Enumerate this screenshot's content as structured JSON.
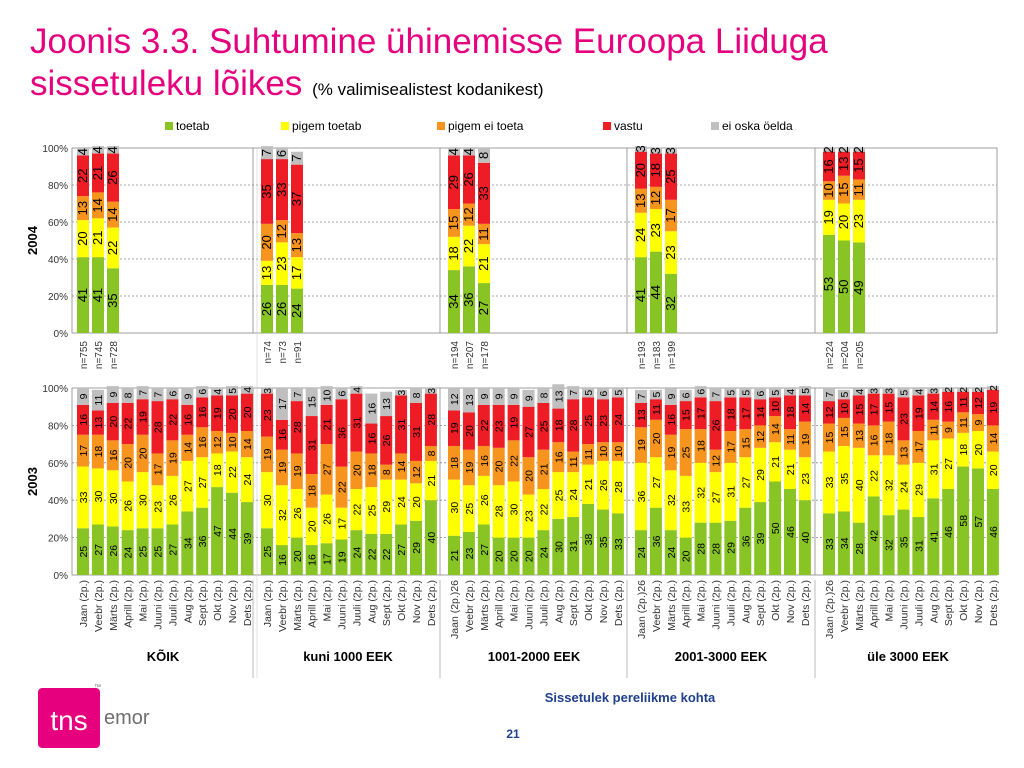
{
  "title": {
    "line1": "Joonis 3.3. Suhtumine ühinemisse Euroopa Liiduga",
    "line2": "sissetuleku lõikes",
    "subtitle": "(% valimisealistest kodanikest)"
  },
  "footer": {
    "page_number": "21",
    "logo_tns": "tns",
    "logo_emor": "emor",
    "logo_tm": "™"
  },
  "colors": {
    "toetab": "#88c424",
    "pigem toetab": "#ffff00",
    "pigem ei toeta": "#f7941d",
    "vastu": "#ee1c24",
    "ei oska öelda": "#bfbfbf",
    "title": "#e6007e"
  },
  "chart_data": {
    "type": "bar",
    "stacked": true,
    "legend": [
      "toetab",
      "pigem toetab",
      "pigem ei toeta",
      "vastu",
      "ei oska öelda"
    ],
    "legend_position": "top",
    "x_title": "Sissetulek pereliikme kohta",
    "yticks": [
      "0%",
      "20%",
      "40%",
      "60%",
      "80%",
      "100%"
    ],
    "ylim": [
      0,
      100
    ],
    "grid": true,
    "groups": [
      "KÕIK",
      "kuni 1000 EEK",
      "1001-2000 EEK",
      "2001-3000 EEK",
      "üle 3000 EEK"
    ],
    "panels": [
      {
        "ylabel": "2004",
        "groups": [
          {
            "bars": [
              {
                "label": "n=755",
                "values": [
                  41,
                  20,
                  13,
                  22,
                  4
                ]
              },
              {
                "label": "n=745",
                "values": [
                  41,
                  21,
                  14,
                  21,
                  4
                ]
              },
              {
                "label": "n=728",
                "values": [
                  35,
                  22,
                  14,
                  26,
                  4
                ]
              }
            ]
          },
          {
            "bars": [
              {
                "label": "n=74",
                "values": [
                  26,
                  13,
                  20,
                  35,
                  7
                ]
              },
              {
                "label": "n=73",
                "values": [
                  26,
                  23,
                  12,
                  33,
                  6
                ]
              },
              {
                "label": "n=91",
                "values": [
                  24,
                  17,
                  13,
                  37,
                  7
                ]
              }
            ]
          },
          {
            "bars": [
              {
                "label": "n=194",
                "values": [
                  34,
                  18,
                  15,
                  29,
                  4
                ]
              },
              {
                "label": "n=207",
                "values": [
                  36,
                  22,
                  12,
                  26,
                  4
                ]
              },
              {
                "label": "n=178",
                "values": [
                  27,
                  21,
                  11,
                  33,
                  8
                ]
              }
            ]
          },
          {
            "bars": [
              {
                "label": "n=193",
                "values": [
                  41,
                  24,
                  13,
                  20,
                  3
                ]
              },
              {
                "label": "n=183",
                "values": [
                  44,
                  23,
                  12,
                  18,
                  3
                ]
              },
              {
                "label": "n=199",
                "values": [
                  32,
                  23,
                  17,
                  25,
                  3
                ]
              }
            ]
          },
          {
            "bars": [
              {
                "label": "n=224",
                "values": [
                  53,
                  19,
                  10,
                  16,
                  2
                ]
              },
              {
                "label": "n=204",
                "values": [
                  50,
                  20,
                  15,
                  13,
                  2
                ]
              },
              {
                "label": "n=205",
                "values": [
                  49,
                  23,
                  11,
                  15,
                  2
                ]
              }
            ]
          }
        ]
      },
      {
        "ylabel": "2003",
        "groups": [
          {
            "bars": [
              {
                "label": "Jaan (2p.)",
                "values": [
                  25,
                  33,
                  17,
                  16,
                  9
                ]
              },
              {
                "label": "Veebr (2p.)",
                "values": [
                  27,
                  30,
                  18,
                  13,
                  11
                ]
              },
              {
                "label": "Märts (2p.)",
                "values": [
                  26,
                  30,
                  16,
                  20,
                  9
                ]
              },
              {
                "label": "Aprill (2p.)",
                "values": [
                  24,
                  26,
                  20,
                  22,
                  8
                ]
              },
              {
                "label": "Mai (2p.)",
                "values": [
                  25,
                  30,
                  20,
                  19,
                  7
                ]
              },
              {
                "label": "Juuni (2p.)",
                "values": [
                  25,
                  23,
                  17,
                  28,
                  7
                ]
              },
              {
                "label": "Juuli (2p.)",
                "values": [
                  27,
                  26,
                  19,
                  22,
                  6
                ]
              },
              {
                "label": "Aug (2p.)",
                "values": [
                  34,
                  27,
                  14,
                  16,
                  9
                ]
              },
              {
                "label": "Sept (2p.)",
                "values": [
                  36,
                  27,
                  16,
                  16,
                  6
                ]
              },
              {
                "label": "Okt (2p.)",
                "values": [
                  47,
                  18,
                  12,
                  19,
                  4
                ]
              },
              {
                "label": "Nov (2p.)",
                "values": [
                  44,
                  22,
                  10,
                  20,
                  5
                ]
              },
              {
                "label": "Dets (2p.)",
                "values": [
                  39,
                  24,
                  14,
                  20,
                  4
                ]
              }
            ]
          },
          {
            "bars": [
              {
                "label": "Jaan (2p.)",
                "values": [
                  25,
                  30,
                  19,
                  23,
                  3
                ]
              },
              {
                "label": "Veebr (2p.)",
                "values": [
                  16,
                  32,
                  19,
                  16,
                  17
                ]
              },
              {
                "label": "Märts (2p.)",
                "values": [
                  20,
                  26,
                  19,
                  28,
                  7
                ]
              },
              {
                "label": "Aprill (2p.)",
                "values": [
                  16,
                  20,
                  18,
                  31,
                  15
                ]
              },
              {
                "label": "Mai (2p.)",
                "values": [
                  17,
                  26,
                  27,
                  21,
                  10
                ]
              },
              {
                "label": "Juuni (2p.)",
                "values": [
                  19,
                  17,
                  22,
                  36,
                  6
                ]
              },
              {
                "label": "Juuli (2p.)",
                "values": [
                  24,
                  22,
                  20,
                  31,
                  4
                ]
              },
              {
                "label": "Aug (2p.)",
                "values": [
                  22,
                  25,
                  18,
                  16,
                  16
                ]
              },
              {
                "label": "Sept (2p.)",
                "values": [
                  22,
                  29,
                  8,
                  26,
                  13
                ]
              },
              {
                "label": "Okt (2p.)",
                "values": [
                  27,
                  24,
                  14,
                  31,
                  3
                ]
              },
              {
                "label": "Nov (2p.)",
                "values": [
                  29,
                  20,
                  12,
                  31,
                  8
                ]
              },
              {
                "label": "Dets (2p.)",
                "values": [
                  40,
                  21,
                  8,
                  28,
                  3
                ]
              }
            ]
          },
          {
            "bars": [
              {
                "label": "Jaan (2p.)26",
                "values": [
                  21,
                  30,
                  18,
                  19,
                  12
                ]
              },
              {
                "label": "Veebr (2p.)",
                "values": [
                  23,
                  25,
                  19,
                  20,
                  13
                ]
              },
              {
                "label": "Märts (2p.)",
                "values": [
                  27,
                  26,
                  16,
                  22,
                  9
                ]
              },
              {
                "label": "Aprill (2p.)",
                "values": [
                  20,
                  28,
                  20,
                  23,
                  9
                ]
              },
              {
                "label": "Mai (2p.)",
                "values": [
                  20,
                  30,
                  22,
                  19,
                  9
                ]
              },
              {
                "label": "Juuni (2p.)",
                "values": [
                  20,
                  23,
                  20,
                  27,
                  9
                ]
              },
              {
                "label": "Juuli (2p.)",
                "values": [
                  24,
                  22,
                  21,
                  25,
                  8
                ]
              },
              {
                "label": "Aug (2p.)",
                "values": [
                  30,
                  25,
                  16,
                  18,
                  13
                ]
              },
              {
                "label": "Sept (2p.)",
                "values": [
                  31,
                  24,
                  11,
                  28,
                  7
                ]
              },
              {
                "label": "Okt (2p.)",
                "values": [
                  38,
                  21,
                  11,
                  25,
                  5
                ]
              },
              {
                "label": "Nov (2p.)",
                "values": [
                  35,
                  26,
                  10,
                  23,
                  6
                ]
              },
              {
                "label": "Dets (2p.)",
                "values": [
                  33,
                  28,
                  10,
                  24,
                  5
                ]
              }
            ]
          },
          {
            "bars": [
              {
                "label": "Jaan (2p.)26",
                "values": [
                  24,
                  36,
                  19,
                  13,
                  7
                ]
              },
              {
                "label": "Veebr (2p.)",
                "values": [
                  36,
                  27,
                  20,
                  11,
                  5
                ]
              },
              {
                "label": "Märts (2p.)",
                "values": [
                  24,
                  32,
                  19,
                  16,
                  9
                ]
              },
              {
                "label": "Aprill (2p.)",
                "values": [
                  20,
                  33,
                  25,
                  15,
                  6
                ]
              },
              {
                "label": "Mai (2p.)",
                "values": [
                  28,
                  32,
                  18,
                  17,
                  6
                ]
              },
              {
                "label": "Juuni (2p.)",
                "values": [
                  28,
                  27,
                  12,
                  26,
                  7
                ]
              },
              {
                "label": "Juuli (2p.)",
                "values": [
                  29,
                  31,
                  17,
                  18,
                  5
                ]
              },
              {
                "label": "Aug (2p.)",
                "values": [
                  36,
                  27,
                  15,
                  17,
                  5
                ]
              },
              {
                "label": "Sept (2p.)",
                "values": [
                  39,
                  29,
                  12,
                  14,
                  6
                ]
              },
              {
                "label": "Okt (2p.)",
                "values": [
                  50,
                  21,
                  14,
                  10,
                  5
                ]
              },
              {
                "label": "Nov (2p.)",
                "values": [
                  46,
                  21,
                  11,
                  18,
                  4
                ]
              },
              {
                "label": "Dets (2p.)",
                "values": [
                  40,
                  23,
                  19,
                  14,
                  5
                ]
              }
            ]
          },
          {
            "bars": [
              {
                "label": "Jaan (2p.)26",
                "values": [
                  33,
                  33,
                  15,
                  12,
                  7
                ]
              },
              {
                "label": "Veebr (2p.)",
                "values": [
                  34,
                  35,
                  15,
                  10,
                  5
                ]
              },
              {
                "label": "Märts (2p.)",
                "values": [
                  28,
                  40,
                  13,
                  15,
                  4
                ]
              },
              {
                "label": "Aprill (2p.)",
                "values": [
                  42,
                  22,
                  16,
                  17,
                  3
                ]
              },
              {
                "label": "Mai (2p.)",
                "values": [
                  32,
                  32,
                  18,
                  15,
                  3
                ]
              },
              {
                "label": "Juuni (2p.)",
                "values": [
                  35,
                  24,
                  13,
                  23,
                  5
                ]
              },
              {
                "label": "Juuli (2p.)",
                "values": [
                  31,
                  29,
                  17,
                  19,
                  4
                ]
              },
              {
                "label": "Aug (2p.)",
                "values": [
                  41,
                  31,
                  11,
                  14,
                  3
                ]
              },
              {
                "label": "Sept (2p.)",
                "values": [
                  46,
                  27,
                  9,
                  16,
                  2
                ]
              },
              {
                "label": "Okt (2p.)",
                "values": [
                  58,
                  18,
                  11,
                  11,
                  2
                ]
              },
              {
                "label": "Nov (2p.)",
                "values": [
                  57,
                  20,
                  9,
                  12,
                  2
                ]
              },
              {
                "label": "Dets (2p.)",
                "values": [
                  46,
                  20,
                  14,
                  19,
                  2
                ]
              }
            ]
          }
        ]
      }
    ]
  }
}
